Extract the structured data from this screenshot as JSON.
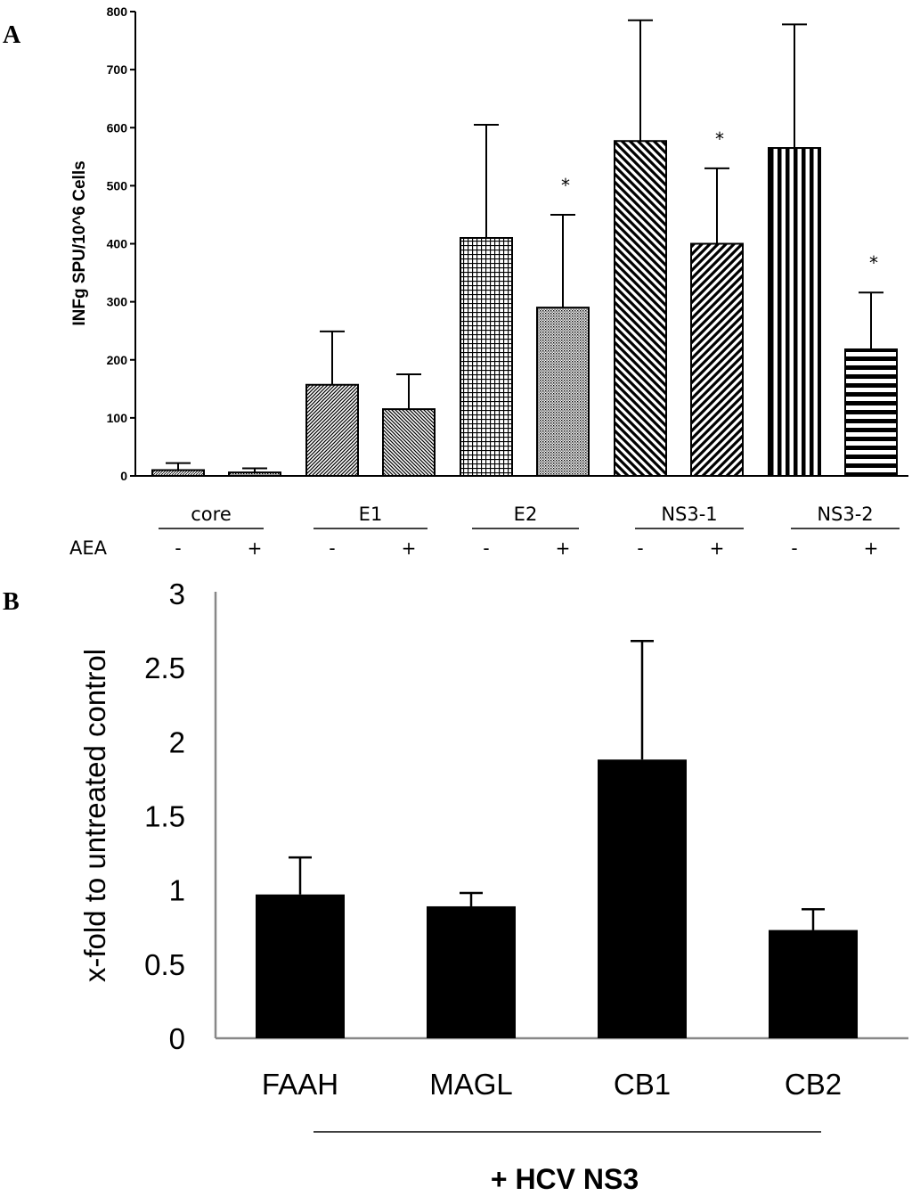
{
  "chart_data": [
    {
      "panel": "A",
      "type": "bar",
      "ylabel": "INFg SPU/10^6 Cells",
      "ylim": [
        0,
        800
      ],
      "yticks": [
        0,
        100,
        200,
        300,
        400,
        500,
        600,
        700,
        800
      ],
      "row_label": "AEA",
      "groups": [
        "core",
        "E1",
        "E2",
        "NS3-1",
        "NS3-2"
      ],
      "bars": [
        {
          "group": "core",
          "aea": "-",
          "value": 10,
          "error": 12,
          "pattern": "fine-hatch",
          "star": ""
        },
        {
          "group": "core",
          "aea": "+",
          "value": 6,
          "error": 7,
          "pattern": "dots",
          "star": ""
        },
        {
          "group": "E1",
          "aea": "-",
          "value": 157,
          "error": 92,
          "pattern": "diag-fwd",
          "star": ""
        },
        {
          "group": "E1",
          "aea": "+",
          "value": 115,
          "error": 60,
          "pattern": "diag-back",
          "star": ""
        },
        {
          "group": "E2",
          "aea": "-",
          "value": 410,
          "error": 195,
          "pattern": "grid",
          "star": ""
        },
        {
          "group": "E2",
          "aea": "+",
          "value": 290,
          "error": 160,
          "pattern": "dots",
          "star": "*"
        },
        {
          "group": "NS3-1",
          "aea": "-",
          "value": 577,
          "error": 208,
          "pattern": "diag-back-wide",
          "star": ""
        },
        {
          "group": "NS3-1",
          "aea": "+",
          "value": 400,
          "error": 130,
          "pattern": "diag-fwd-wide",
          "star": "*"
        },
        {
          "group": "NS3-2",
          "aea": "-",
          "value": 565,
          "error": 213,
          "pattern": "vertical",
          "star": ""
        },
        {
          "group": "NS3-2",
          "aea": "+",
          "value": 218,
          "error": 98,
          "pattern": "horizontal",
          "star": "*"
        }
      ]
    },
    {
      "panel": "B",
      "type": "bar",
      "ylabel": "x-fold to untreated  control",
      "ylim": [
        0,
        3
      ],
      "yticks": [
        "0",
        "0.5",
        "1",
        "1.5",
        "2",
        "2.5",
        "3"
      ],
      "categories": [
        "FAAH",
        "MAGL",
        "CB1",
        "CB2"
      ],
      "values": [
        0.97,
        0.89,
        1.88,
        0.73
      ],
      "errors": [
        0.25,
        0.09,
        0.8,
        0.14
      ],
      "footer": "+ HCV NS3",
      "bar_color": "#000000"
    }
  ],
  "panel_labels": {
    "a": "A",
    "b": "B"
  }
}
